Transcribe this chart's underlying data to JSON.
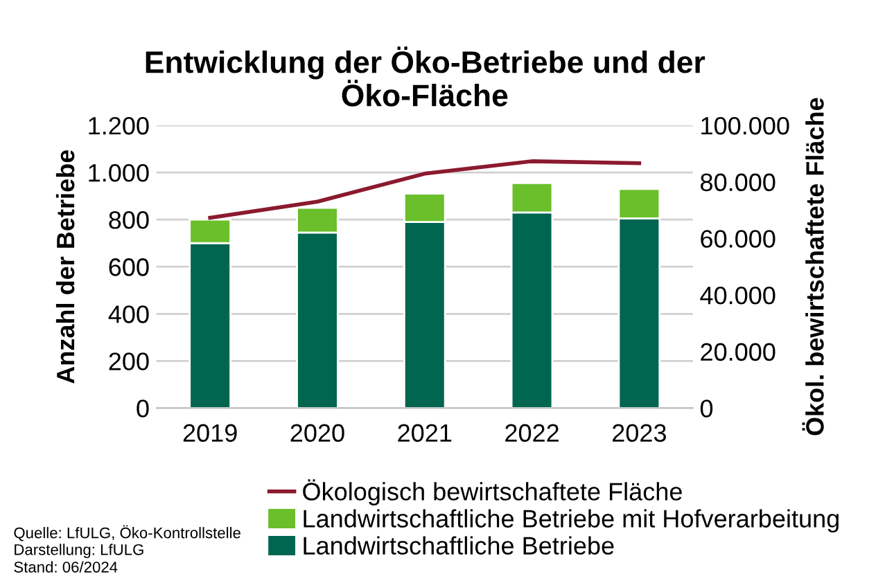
{
  "chart_data": {
    "type": "bar",
    "title": "Entwicklung der Öko-Betriebe und der\nÖko-Fläche",
    "ylabel": "Anzahl der Betriebe",
    "y2label": "Ökol. bewirtschaftete Fläche",
    "categories": [
      "2019",
      "2020",
      "2021",
      "2022",
      "2023"
    ],
    "stacked": true,
    "series": [
      {
        "name": "Landwirtschaftliche Betriebe",
        "color": "#00664f",
        "values": [
          700,
          745,
          790,
          830,
          805
        ]
      },
      {
        "name": "Landwirtschaftliche Betriebe mit Hofverarbeitung",
        "color": "#6abf2a",
        "values": [
          100,
          105,
          120,
          125,
          125
        ]
      },
      {
        "name": "Ökologisch bewirtschaftete Fläche",
        "type": "line",
        "axis": "y2",
        "color": "#8b1a2f",
        "values": [
          67300,
          73000,
          82900,
          87300,
          86600
        ]
      }
    ],
    "ylim": [
      0,
      1200
    ],
    "yticks": [
      0,
      200,
      400,
      600,
      800,
      {
        "value": 1000,
        "label": "1.000"
      },
      {
        "value": 1200,
        "label": "1.200"
      }
    ],
    "y2lim": [
      0,
      100000
    ],
    "y2ticks": [
      0,
      {
        "value": 20000,
        "label": "20.000"
      },
      {
        "value": 40000,
        "label": "40.000"
      },
      {
        "value": 60000,
        "label": "60.000"
      },
      {
        "value": 80000,
        "label": "80.000"
      },
      {
        "value": 100000,
        "label": "100.000"
      }
    ],
    "grid": "y",
    "legend": "bottom",
    "marker": "none",
    "annotations": [
      "Quelle: LfULG, Öko-Kontrollstelle",
      "Darstellung: LfULG",
      "Stand: 06/2024"
    ]
  }
}
